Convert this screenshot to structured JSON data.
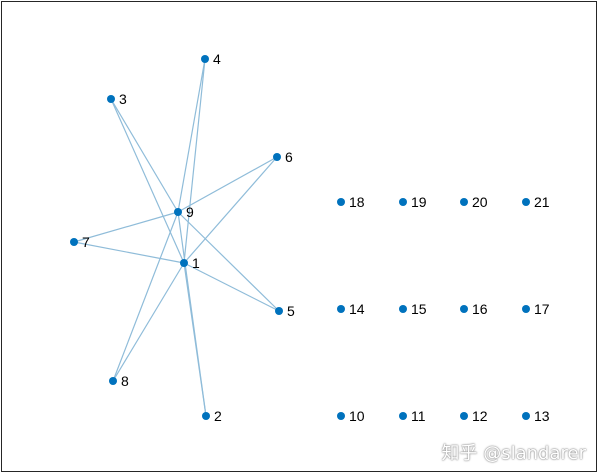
{
  "graph": {
    "node_color": "#0072BD",
    "edge_color": "#8fbcd9",
    "nodes": [
      "1",
      "2",
      "3",
      "4",
      "5",
      "6",
      "7",
      "8",
      "9",
      "10",
      "11",
      "12",
      "13",
      "14",
      "15",
      "16",
      "17",
      "18",
      "19",
      "20",
      "21"
    ],
    "edges": [
      [
        "1",
        "2"
      ],
      [
        "1",
        "3"
      ],
      [
        "1",
        "4"
      ],
      [
        "1",
        "5"
      ],
      [
        "1",
        "6"
      ],
      [
        "1",
        "7"
      ],
      [
        "1",
        "8"
      ],
      [
        "9",
        "2"
      ],
      [
        "9",
        "3"
      ],
      [
        "9",
        "4"
      ],
      [
        "9",
        "5"
      ],
      [
        "9",
        "6"
      ],
      [
        "9",
        "7"
      ],
      [
        "9",
        "8"
      ]
    ]
  },
  "watermark": "知乎 @slandarer"
}
